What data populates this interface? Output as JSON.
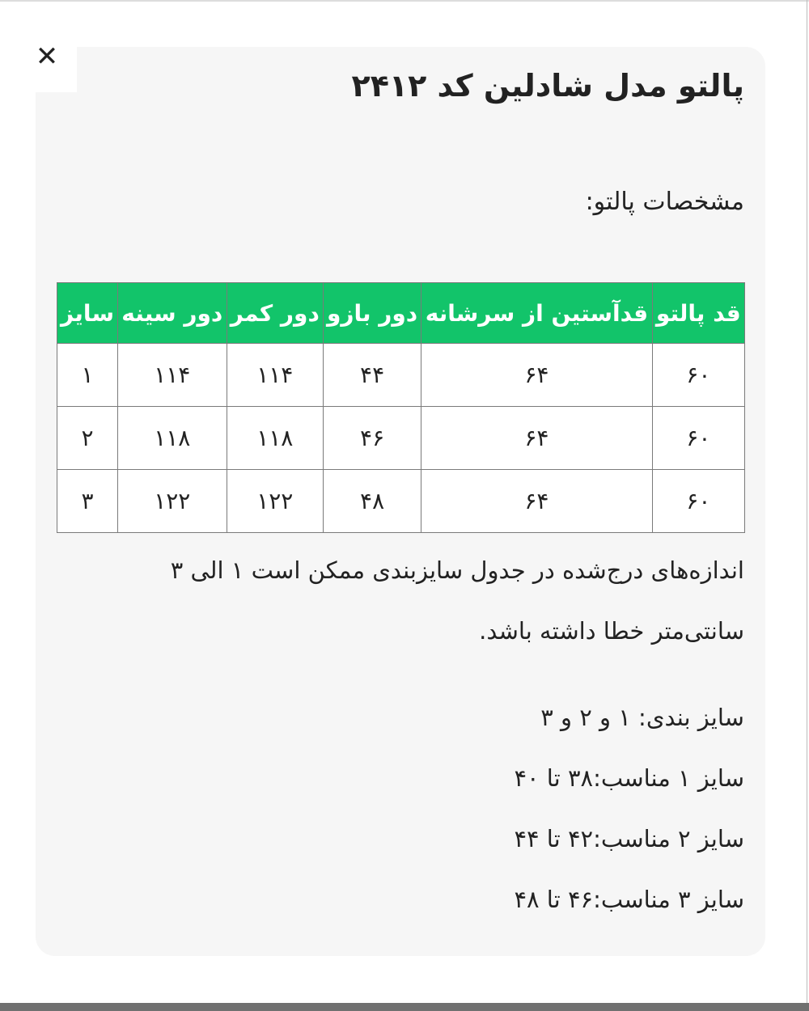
{
  "close_icon": "close-icon",
  "title": "پالتو مدل شادلین کد ۲۴۱۲",
  "subtitle": "مشخصات پالتو:",
  "table": {
    "header_color": "#12c46a",
    "headers": [
      "قد پالتو",
      "قدآستین از سرشانه",
      "دور بازو",
      "دور کمر",
      "دور سینه",
      "سایز"
    ],
    "rows": [
      [
        "۶۰",
        "۶۴",
        "۴۴",
        "۱۱۴",
        "۱۱۴",
        "۱"
      ],
      [
        "۶۰",
        "۶۴",
        "۴۶",
        "۱۱۸",
        "۱۱۸",
        "۲"
      ],
      [
        "۶۰",
        "۶۴",
        "۴۸",
        "۱۲۲",
        "۱۲۲",
        "۳"
      ]
    ]
  },
  "note": "اندازه‌های درج‌شده در جدول سایزبندی ممکن است ۱ الی ۳ سانتی‌متر خطا داشته باشد.",
  "sizing": {
    "sizes": "سایز بندی: ۱ و ۲ و ۳",
    "size1": "سایز ۱ مناسب:۳۸ تا ۴۰",
    "size2": "سایز ۲ مناسب:۴۲ تا ۴۴",
    "size3": "سایز ۳ مناسب:۴۶ تا ۴۸"
  }
}
